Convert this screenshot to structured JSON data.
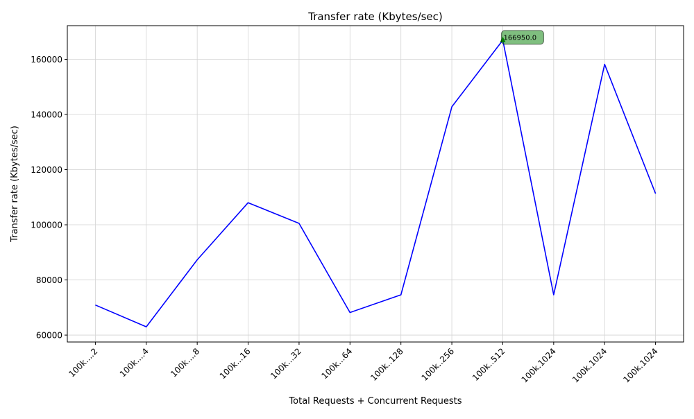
{
  "chart_data": {
    "type": "line",
    "title": "Transfer rate (Kbytes/sec)",
    "xlabel": "Total Requests + Concurrent Requests",
    "ylabel": "Transfer rate (Kbytes/sec)",
    "categories": [
      "100k....2",
      "100k....4",
      "100k....8",
      "100k...16",
      "100k...32",
      "100k...64",
      "100k..128",
      "100k..256",
      "100k..512",
      "100k.1024",
      "100k.1024",
      "100k.1024"
    ],
    "series": [
      {
        "color": "#0000ff",
        "values": [
          70900,
          63000,
          87300,
          108000,
          100500,
          68200,
          74600,
          142800,
          166950,
          74600,
          158200,
          111300
        ]
      }
    ],
    "ylim": [
      57500,
      172200
    ],
    "yticks": [
      60000,
      80000,
      100000,
      120000,
      140000,
      160000
    ],
    "grid": true,
    "annotation": {
      "index": 8,
      "label": "166950.0",
      "color": "#008000"
    }
  }
}
